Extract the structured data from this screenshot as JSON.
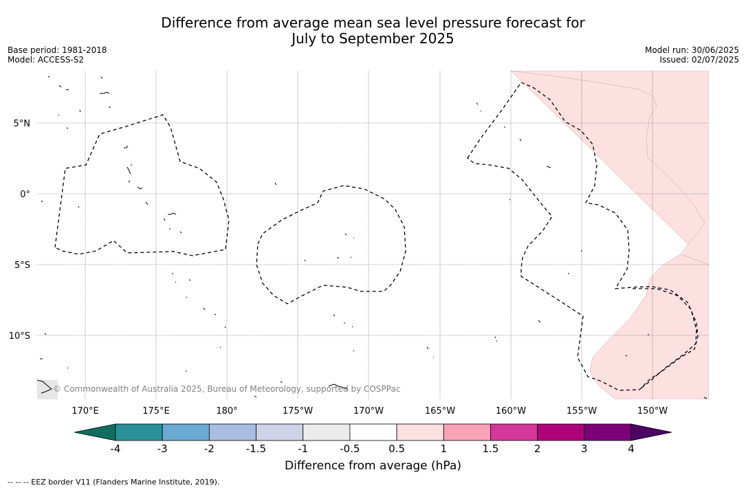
{
  "title_line1": "Difference from average mean sea level pressure forecast for",
  "title_line2": "July to September 2025",
  "base_period": "Base period: 1981-2018",
  "model": "Model: ACCESS-S2",
  "model_run": "Model run: 30/06/2025",
  "issued": "Issued: 02/07/2025",
  "copyright": "© Commonwealth of Australia 2025, Bureau of Meteorology, supported by COSPPac",
  "lon_ticks": [
    "170°E",
    "175°E",
    "180°",
    "175°W",
    "170°W",
    "165°W",
    "160°W",
    "155°W",
    "150°W"
  ],
  "lat_ticks": [
    "5°N",
    "0°",
    "5°S",
    "10°S"
  ],
  "colorbar": {
    "label": "Difference from average (hPa)",
    "ticks": [
      "-4",
      "-3",
      "-2",
      "-1.5",
      "-1",
      "-0.5",
      "0.5",
      "1",
      "1.5",
      "2",
      "3",
      "4"
    ],
    "colors": [
      "#0f6e60",
      "#2a9198",
      "#6aaad3",
      "#a8bddf",
      "#d0d2ea",
      "#ebebeb",
      "#ffffff",
      "#fde0e0",
      "#f9a2b6",
      "#d6379a",
      "#ad0079",
      "#7b0279",
      "#4c0065"
    ]
  },
  "footer": "--  --  -- EEZ border V11 (Flanders Marine Institute, 2019)."
}
